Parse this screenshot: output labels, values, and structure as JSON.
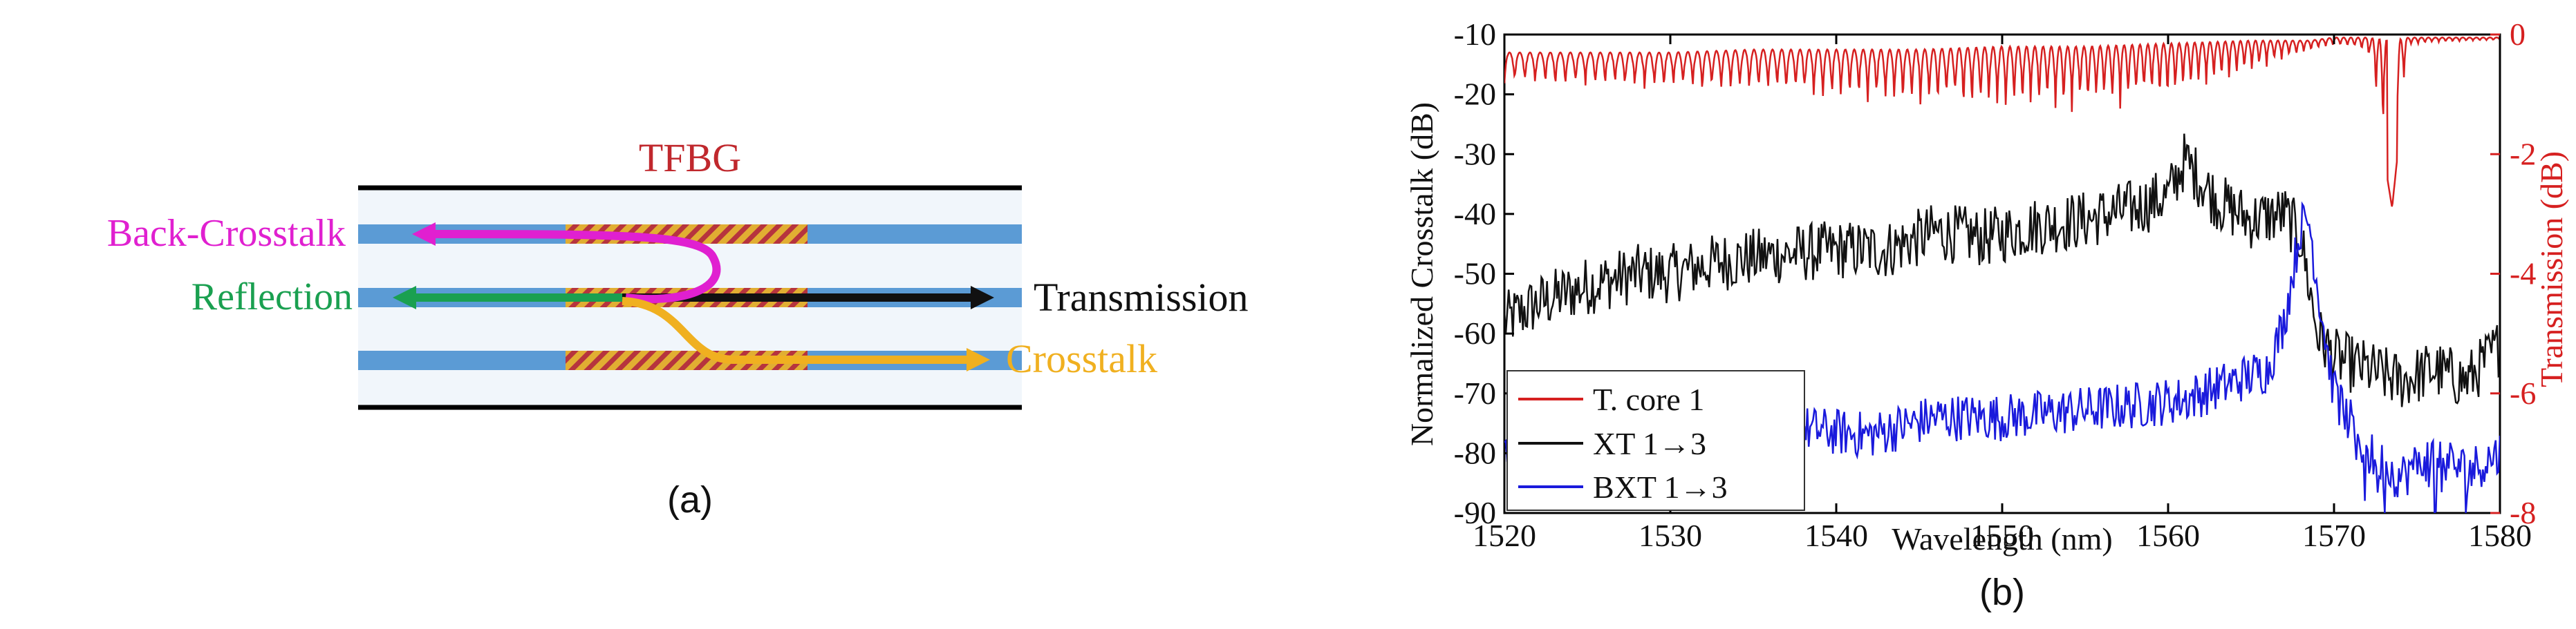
{
  "panel_a": {
    "title": "TFBG",
    "label_back_crosstalk": "Back-Crosstalk",
    "label_reflection": "Reflection",
    "label_transmission": "Transmission",
    "label_crosstalk": "Crosstalk",
    "caption": "(a)",
    "colors": {
      "title": "#c0282d",
      "back_crosstalk": "#e020d0",
      "reflection": "#1aa050",
      "transmission": "#111111",
      "crosstalk": "#f0b020",
      "core": "#5b9bd5",
      "cladding": "#dde9f5",
      "grating": "#c0282d",
      "grating_fill": "#f0b020"
    }
  },
  "panel_b": {
    "caption": "(b)",
    "chart_data": {
      "type": "line",
      "xlabel": "Wavelength (nm)",
      "ylabel_left": "Normalized Crosstalk (dB)",
      "ylabel_right": "Transmission (dB)",
      "xlim": [
        1520,
        1580
      ],
      "ylim_left": [
        -90,
        -10
      ],
      "ylim_right": [
        -8,
        0
      ],
      "xticks": [
        1520,
        1530,
        1540,
        1550,
        1560,
        1570,
        1580
      ],
      "yticks_left": [
        -10,
        -20,
        -30,
        -40,
        -50,
        -60,
        -70,
        -80,
        -90
      ],
      "yticks_right": [
        0,
        -2,
        -4,
        -6,
        -8
      ],
      "legend_position": "bottom-left",
      "series": [
        {
          "name": "T. core 1",
          "axis": "right",
          "color": "#d62020",
          "description_points": {
            "x": [
              1520,
              1525,
              1530,
              1535,
              1540,
              1545,
              1550,
              1555,
              1560,
              1565,
              1568.5,
              1570,
              1572,
              1573.5,
              1574.5,
              1576,
              1580
            ],
            "upper": [
              -0.3,
              -0.3,
              -0.3,
              -0.25,
              -0.25,
              -0.25,
              -0.2,
              -0.2,
              -0.15,
              -0.1,
              -0.1,
              -0.05,
              -0.05,
              -0.1,
              -0.05,
              -0.05,
              -0.05
            ],
            "lower": [
              -0.9,
              -0.95,
              -1.0,
              -1.1,
              -1.2,
              -1.3,
              -1.4,
              -1.4,
              -1.2,
              -0.7,
              -0.3,
              -0.2,
              -0.3,
              -2.9,
              -0.2,
              -0.15,
              -0.1
            ]
          }
        },
        {
          "name": "XT 1→3",
          "axis": "left",
          "color": "#111111",
          "x": [
            1520,
            1522,
            1525,
            1528,
            1530,
            1533,
            1536,
            1540,
            1543,
            1546,
            1549,
            1552,
            1555,
            1558,
            1560,
            1561,
            1563,
            1565,
            1567,
            1568,
            1569,
            1570,
            1572,
            1574,
            1576,
            1578,
            1580
          ],
          "values": [
            -58,
            -55,
            -52,
            -50,
            -50,
            -48,
            -47,
            -46,
            -46,
            -43,
            -44,
            -42,
            -41,
            -39,
            -37,
            -31,
            -38,
            -41,
            -40,
            -44,
            -60,
            -64,
            -66,
            -68,
            -66,
            -68,
            -62
          ]
        },
        {
          "name": "BXT 1→3",
          "axis": "left",
          "color": "#1a1adc",
          "x": [
            1520,
            1523,
            1526,
            1530,
            1534,
            1538,
            1542,
            1546,
            1550,
            1554,
            1558,
            1561,
            1564,
            1566,
            1567,
            1568,
            1568.5,
            1569,
            1570,
            1572,
            1574,
            1576,
            1578,
            1580
          ],
          "values": [
            -78,
            -74,
            -73,
            -75,
            -74,
            -76,
            -77,
            -74,
            -74,
            -73,
            -72,
            -71,
            -68,
            -66,
            -58,
            -42,
            -41,
            -52,
            -70,
            -80,
            -84,
            -80,
            -83,
            -80
          ]
        }
      ]
    }
  }
}
